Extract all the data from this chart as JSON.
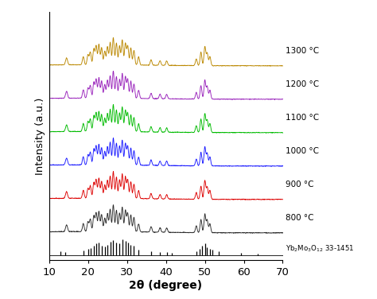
{
  "xlabel": "2θ (degree)",
  "ylabel": "Intensity (a.u.)",
  "xlim": [
    10,
    70
  ],
  "temperatures": [
    "800 °C",
    "900 °C",
    "1000 °C",
    "1100 °C",
    "1200 °C",
    "1300 °C"
  ],
  "colors": [
    "#2b2b2b",
    "#dd0000",
    "#1a1aff",
    "#00bb00",
    "#9922bb",
    "#bb8800"
  ],
  "offsets": [
    0.0,
    0.95,
    1.9,
    2.85,
    3.8,
    4.75
  ],
  "label_offsets": [
    0.45,
    0.45,
    0.45,
    0.45,
    0.45,
    0.45
  ],
  "reference_label": "Yb$_2$Mo$_3$O$_{12}$ 33-1451",
  "ref_peaks": [
    13.0,
    14.2,
    18.8,
    20.0,
    20.6,
    21.5,
    22.1,
    22.8,
    23.5,
    24.3,
    25.0,
    25.7,
    26.5,
    27.3,
    28.1,
    28.8,
    29.6,
    30.2,
    31.0,
    31.8,
    33.0,
    36.2,
    38.5,
    40.2,
    41.5,
    47.8,
    48.6,
    49.3,
    50.0,
    50.6,
    51.3,
    52.0,
    53.5,
    59.2,
    63.5
  ],
  "ref_heights": [
    0.25,
    0.18,
    0.28,
    0.35,
    0.42,
    0.55,
    0.65,
    0.7,
    0.55,
    0.48,
    0.6,
    0.75,
    0.85,
    0.7,
    0.65,
    0.9,
    0.8,
    0.7,
    0.6,
    0.55,
    0.3,
    0.22,
    0.18,
    0.2,
    0.15,
    0.25,
    0.35,
    0.55,
    0.65,
    0.45,
    0.38,
    0.3,
    0.22,
    0.15,
    0.12
  ],
  "peak_positions": [
    14.5,
    18.8,
    20.0,
    20.6,
    21.5,
    22.1,
    22.8,
    23.5,
    24.3,
    25.0,
    25.7,
    26.5,
    27.3,
    28.1,
    28.8,
    29.6,
    30.2,
    31.0,
    31.8,
    33.0,
    36.2,
    38.5,
    40.2,
    47.8,
    49.0,
    50.0,
    50.6,
    51.3
  ],
  "peak_widths": [
    0.25,
    0.22,
    0.22,
    0.22,
    0.22,
    0.22,
    0.22,
    0.22,
    0.22,
    0.22,
    0.22,
    0.22,
    0.22,
    0.22,
    0.22,
    0.22,
    0.22,
    0.22,
    0.22,
    0.22,
    0.22,
    0.22,
    0.22,
    0.22,
    0.22,
    0.22,
    0.22,
    0.22
  ],
  "peak_heights_base": [
    0.15,
    0.18,
    0.22,
    0.28,
    0.35,
    0.42,
    0.45,
    0.38,
    0.3,
    0.4,
    0.5,
    0.6,
    0.48,
    0.42,
    0.55,
    0.48,
    0.42,
    0.38,
    0.32,
    0.18,
    0.12,
    0.1,
    0.1,
    0.15,
    0.3,
    0.42,
    0.28,
    0.2
  ]
}
